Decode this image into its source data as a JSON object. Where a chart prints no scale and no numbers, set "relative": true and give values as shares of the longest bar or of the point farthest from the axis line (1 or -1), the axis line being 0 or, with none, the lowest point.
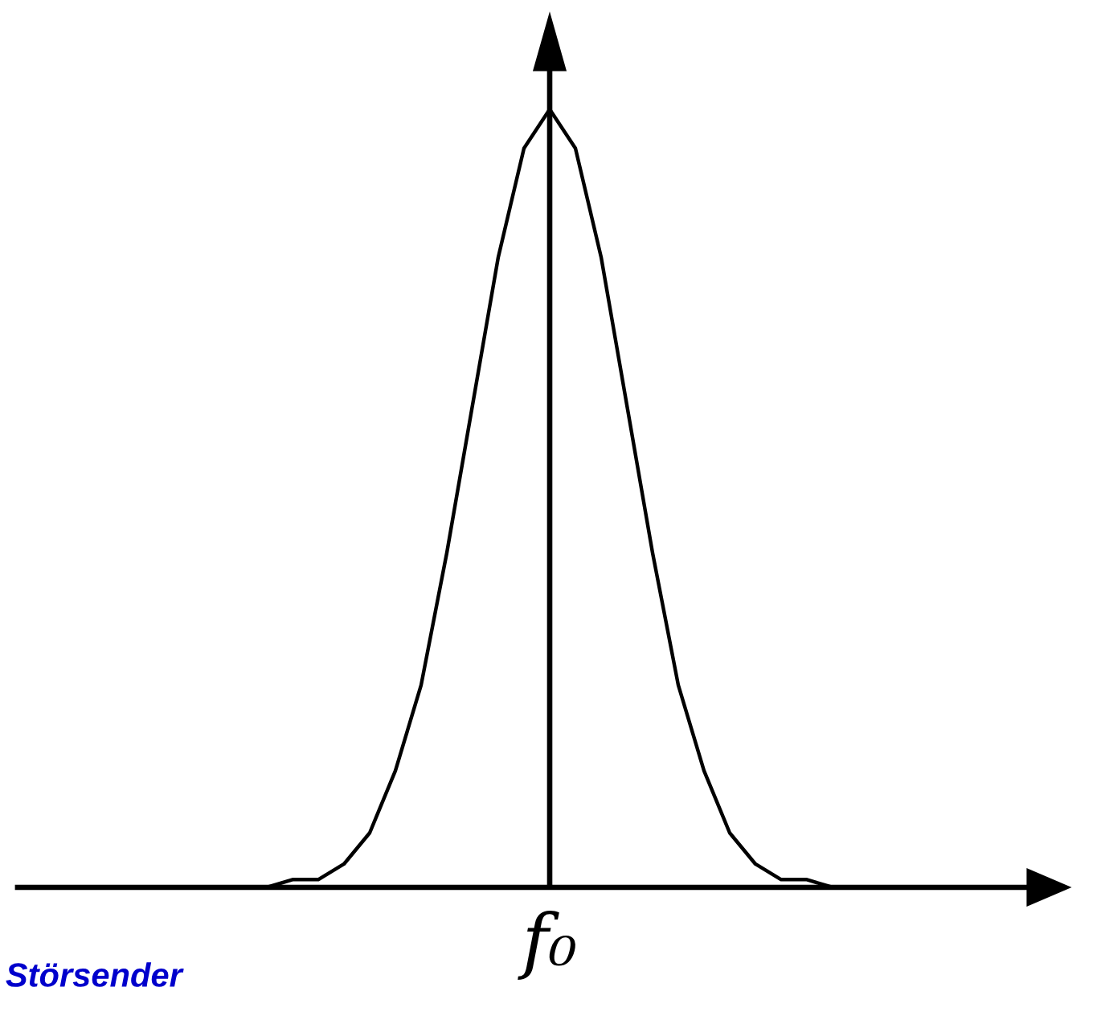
{
  "chart_data": {
    "type": "line",
    "relative": true,
    "categories": [
      null,
      null,
      null,
      null,
      null,
      null,
      null,
      null,
      null,
      null,
      null,
      null,
      null,
      null,
      null,
      null,
      null,
      null,
      null,
      null,
      null,
      null,
      null,
      null,
      null,
      null,
      null,
      null,
      null,
      null,
      null,
      null,
      null,
      null,
      null,
      null,
      null,
      null,
      null,
      null,
      null
    ],
    "series": [
      {
        "color": "#000000",
        "values": [
          0,
          0,
          0,
          0,
          0,
          0,
          0,
          0,
          0,
          0,
          0.01,
          0.01,
          0.03,
          0.07,
          0.15,
          0.26,
          0.43,
          0.62,
          0.81,
          0.95,
          1,
          0.95,
          0.81,
          0.62,
          0.43,
          0.26,
          0.15,
          0.07,
          0.03,
          0.01,
          0.01,
          0,
          0,
          0,
          0,
          0,
          0,
          0,
          0,
          0,
          0
        ]
      }
    ],
    "annotations": [
      "f₀",
      "Störsender"
    ],
    "marker": "none",
    "line_style": "solid"
  }
}
